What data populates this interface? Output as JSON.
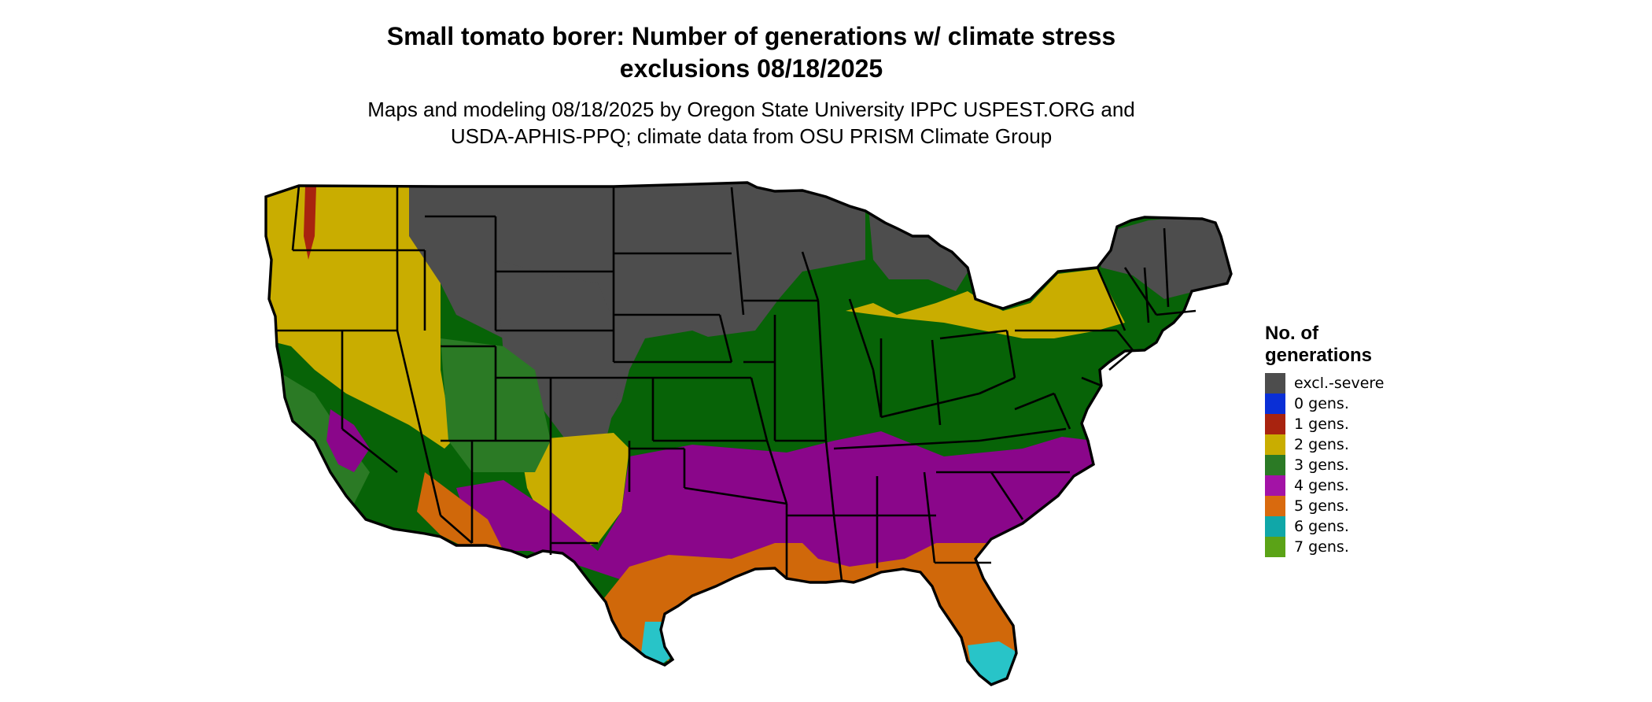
{
  "title": {
    "line1": "Small tomato borer: Number of generations w/ climate stress",
    "line2": "exclusions 08/18/2025"
  },
  "subtitle": {
    "line1": "Maps and modeling 08/18/2025 by Oregon State University IPPC USPEST.ORG and",
    "line2": "USDA-APHIS-PPQ; climate data from OSU PRISM Climate Group"
  },
  "legend": {
    "title_line1": "No. of",
    "title_line2": "generations",
    "items": [
      {
        "label": "excl.-severe",
        "color": "#4d4d4d"
      },
      {
        "label": "0 gens.",
        "color": "#0a2fd6"
      },
      {
        "label": "1 gens.",
        "color": "#a8230f"
      },
      {
        "label": "2 gens.",
        "color": "#c9ad00"
      },
      {
        "label": "3 gens.",
        "color": "#2b7a25"
      },
      {
        "label": "4 gens.",
        "color": "#a313a6"
      },
      {
        "label": "5 gens.",
        "color": "#d96a0e"
      },
      {
        "label": "6 gens.",
        "color": "#10a7a8"
      },
      {
        "label": "7 gens.",
        "color": "#5ba317"
      }
    ]
  },
  "map": {
    "region": "Conterminous United States",
    "zone_colors": {
      "excl_severe": "#4d4d4d",
      "two_gens": "#c9ad00",
      "three_gens": "#076307",
      "four_gens": "#8a068a",
      "five_gens": "#d0680a",
      "six_gens": "#28c4c8",
      "one_gens": "#a8230f"
    }
  }
}
